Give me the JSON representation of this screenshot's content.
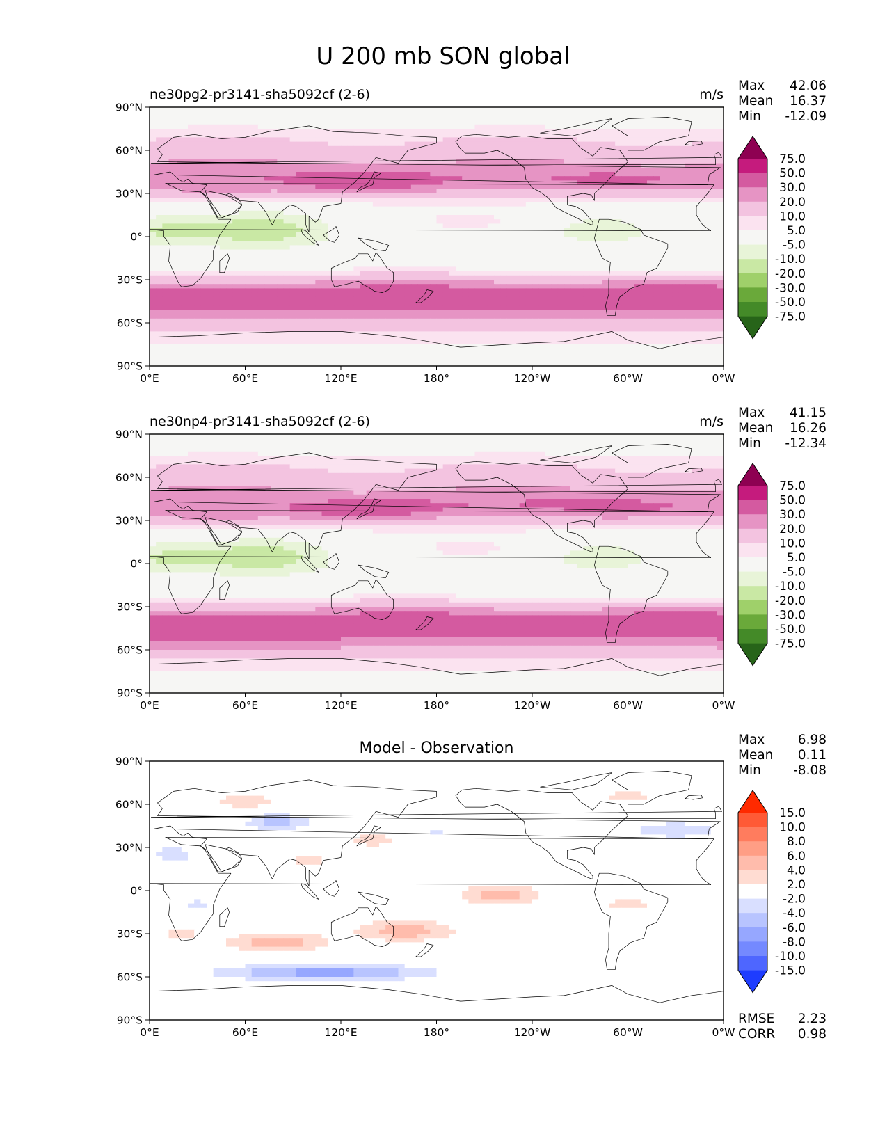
{
  "chart_data": {
    "type": "heatmap",
    "title": "U 200 mb SON global",
    "x_ticks": [
      "0°E",
      "60°E",
      "120°E",
      "180°",
      "120°W",
      "60°W",
      "0°W"
    ],
    "y_ticks": [
      "90°N",
      "60°N",
      "30°N",
      "0°",
      "30°S",
      "60°S",
      "90°S"
    ],
    "lon_range": [
      0,
      360
    ],
    "lat_range": [
      -90,
      90
    ],
    "panels": [
      {
        "id": "test",
        "label": "ne30pg2-pr3141-sha5092cf (2-6)",
        "units": "m/s",
        "stats": [
          {
            "label": "Max",
            "value": "42.06"
          },
          {
            "label": "Mean",
            "value": "16.37"
          },
          {
            "label": "Min",
            "value": "-12.09"
          }
        ],
        "colorbar": {
          "labels": [
            "75.0",
            "50.0",
            "30.0",
            "20.0",
            "10.0",
            "5.0",
            "-5.0",
            "-10.0",
            "-20.0",
            "-30.0",
            "-50.0",
            "-75.0"
          ],
          "colors": [
            "#8e0152",
            "#c51b7d",
            "#d45aa0",
            "#e694c4",
            "#f3c3e0",
            "#fbe3f0",
            "#f6f6f4",
            "#e8f4d8",
            "#c9e8a4",
            "#9fd06a",
            "#6aa93a",
            "#448a28",
            "#276419"
          ]
        }
      },
      {
        "id": "ref",
        "label": "ne30np4-pr3141-sha5092cf (2-6)",
        "units": "m/s",
        "stats": [
          {
            "label": "Max",
            "value": "41.15"
          },
          {
            "label": "Mean",
            "value": "16.26"
          },
          {
            "label": "Min",
            "value": "-12.34"
          }
        ],
        "colorbar": {
          "labels": [
            "75.0",
            "50.0",
            "30.0",
            "20.0",
            "10.0",
            "5.0",
            "-5.0",
            "-10.0",
            "-20.0",
            "-30.0",
            "-50.0",
            "-75.0"
          ],
          "colors": [
            "#8e0152",
            "#c51b7d",
            "#d45aa0",
            "#e694c4",
            "#f3c3e0",
            "#fbe3f0",
            "#f6f6f4",
            "#e8f4d8",
            "#c9e8a4",
            "#9fd06a",
            "#6aa93a",
            "#448a28",
            "#276419"
          ]
        }
      },
      {
        "id": "diff",
        "label": "Model - Observation",
        "units": "",
        "stats": [
          {
            "label": "Max",
            "value": "6.98"
          },
          {
            "label": "Mean",
            "value": "0.11"
          },
          {
            "label": "Min",
            "value": "-8.08"
          }
        ],
        "extra_stats": [
          {
            "label": "RMSE",
            "value": "2.23"
          },
          {
            "label": "CORR",
            "value": "0.98"
          }
        ],
        "colorbar": {
          "labels": [
            "15.0",
            "10.0",
            "8.0",
            "6.0",
            "4.0",
            "2.0",
            "-2.0",
            "-4.0",
            "-6.0",
            "-8.0",
            "-10.0",
            "-15.0"
          ],
          "colors": [
            "#ff2a00",
            "#ff5a36",
            "#ff7c5e",
            "#ff9e85",
            "#ffbcac",
            "#ffdcd2",
            "#ffffff",
            "#d9dfff",
            "#b8c4ff",
            "#96a7ff",
            "#7489ff",
            "#4e66ff",
            "#1e3cff"
          ]
        }
      }
    ]
  }
}
